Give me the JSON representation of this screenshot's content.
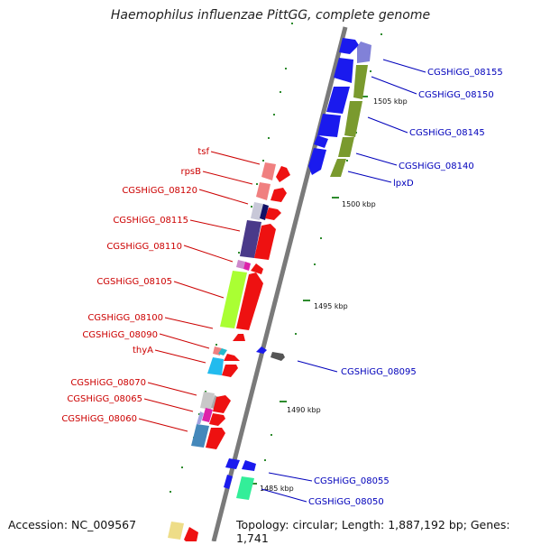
{
  "title": "Haemophilus influenzae PittGG, complete genome",
  "accession": "Accession: NC_009567",
  "topology": "Topology: circular; Length: 1,887,192 bp; Genes: 1,741",
  "colors": {
    "backbone": "#7a7a7a",
    "tick": "#2e8b2e",
    "left_label": "#cc0000",
    "right_label": "#0000bb"
  },
  "scale_labels": [
    "1505 kbp",
    "1500 kbp",
    "1495 kbp",
    "1490 kbp",
    "1485 kbp"
  ],
  "left_labels": [
    "tsf",
    "rpsB",
    "CGSHiGG_08120",
    "CGSHiGG_08115",
    "CGSHiGG_08110",
    "CGSHiGG_08105",
    "CGSHiGG_08100",
    "CGSHiGG_08090",
    "thyA",
    "CGSHiGG_08070",
    "CGSHiGG_08065",
    "CGSHiGG_08060"
  ],
  "right_labels": [
    "CGSHiGG_08155",
    "CGSHiGG_08150",
    "CGSHiGG_08145",
    "CGSHiGG_08140",
    "lpxD",
    "CGSHiGG_08095",
    "CGSHiGG_08055",
    "CGSHiGG_08050"
  ]
}
